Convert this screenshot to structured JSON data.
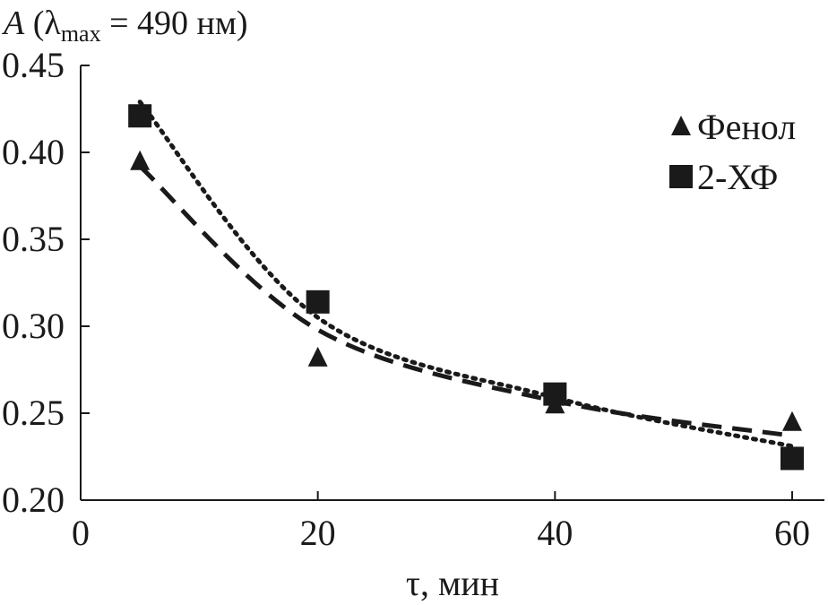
{
  "chart_data": {
    "type": "scatter",
    "title_parts": {
      "italic": "A",
      "open": " (λ",
      "sub": "max",
      "rest": " = 490 нм)"
    },
    "xlabel": "τ, мин",
    "ylabel": "",
    "xlim": [
      0,
      63
    ],
    "ylim": [
      0.2,
      0.45
    ],
    "x_ticks": [
      0,
      20,
      40,
      60
    ],
    "x_tick_labels": [
      "0",
      "20",
      "40",
      "60"
    ],
    "y_ticks": [
      0.2,
      0.25,
      0.3,
      0.35,
      0.4,
      0.45
    ],
    "y_tick_labels": [
      "0.20",
      "0.25",
      "0.30",
      "0.35",
      "0.40",
      "0.45"
    ],
    "grid": false,
    "legend_position": "top-right",
    "series": [
      {
        "name": "Фенол",
        "marker": "triangle",
        "line_style": "dashed",
        "color": "#1a1a1a",
        "x": [
          5,
          20,
          40,
          60
        ],
        "y": [
          0.395,
          0.282,
          0.255,
          0.245
        ],
        "trend_y": [
          0.392,
          0.298,
          0.257,
          0.237
        ]
      },
      {
        "name": "2-ХФ",
        "marker": "square",
        "line_style": "dotted",
        "color": "#1a1a1a",
        "x": [
          5,
          20,
          40,
          60
        ],
        "y": [
          0.421,
          0.314,
          0.261,
          0.224
        ],
        "trend_y": [
          0.429,
          0.305,
          0.259,
          0.231
        ]
      }
    ]
  }
}
